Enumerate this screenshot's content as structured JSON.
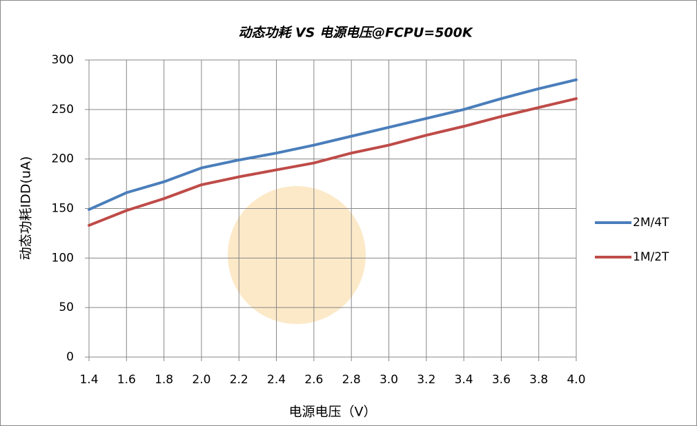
{
  "chart_data": {
    "type": "line",
    "title": "动态功耗 VS 电源电压@FCPU=500K",
    "x_label": "电源电压（V）",
    "y_label": "动态功耗IDD(uA)",
    "x": [
      1.4,
      1.6,
      1.8,
      2.0,
      2.2,
      2.4,
      2.6,
      2.8,
      3.0,
      3.2,
      3.4,
      3.6,
      3.8,
      4.0
    ],
    "series": [
      {
        "name": "2M/4T",
        "color": "#4a7ebb",
        "values": [
          149,
          166,
          177,
          191,
          199,
          206,
          214,
          223,
          232,
          241,
          250,
          261,
          271,
          280
        ]
      },
      {
        "name": "1M/2T",
        "color": "#be4b48",
        "values": [
          133,
          148,
          160,
          174,
          182,
          189,
          196,
          206,
          214,
          224,
          233,
          243,
          252,
          261
        ]
      }
    ],
    "xlim": [
      1.4,
      4.0
    ],
    "xticks": [
      1.4,
      1.6,
      1.8,
      {
        "value": 2.0,
        "label": "2.0"
      },
      2.2,
      2.4,
      2.6,
      2.8,
      {
        "value": 3.0,
        "label": "3.0"
      },
      3.2,
      3.4,
      3.6,
      3.8,
      {
        "value": 4.0,
        "label": "4.0"
      }
    ],
    "ylim": [
      0,
      300
    ],
    "yticks": [
      0,
      50,
      100,
      150,
      200,
      250,
      300
    ],
    "grid": true,
    "legend": "right"
  }
}
